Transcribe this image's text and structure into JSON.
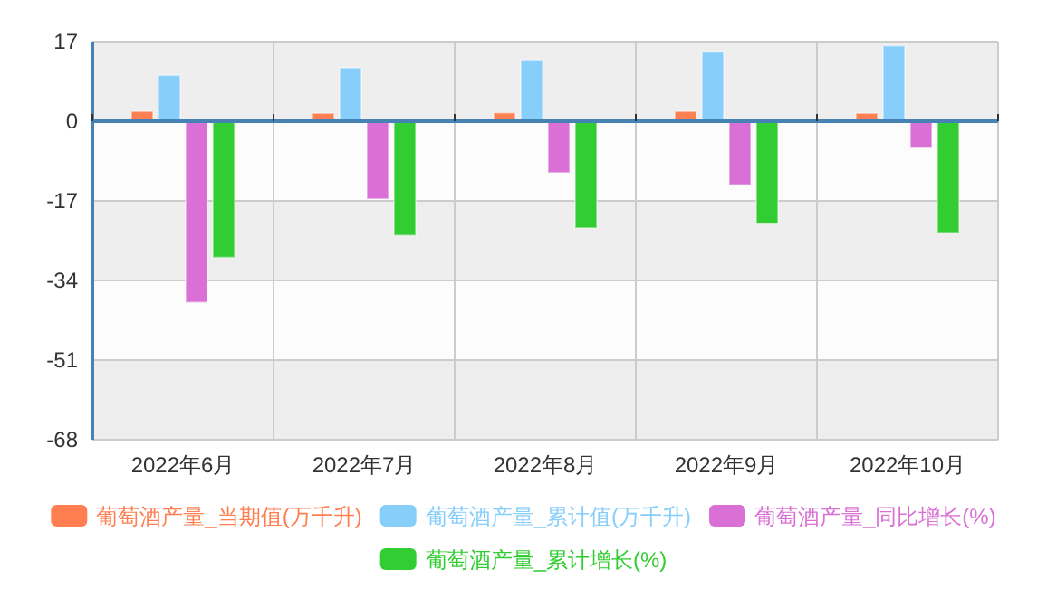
{
  "chart_data": {
    "type": "bar",
    "categories": [
      "2022年6月",
      "2022年7月",
      "2022年8月",
      "2022年9月",
      "2022年10月"
    ],
    "series": [
      {
        "name": "葡萄酒产量_当期值(万千升)",
        "color": "#ff7f50",
        "values": [
          2.1,
          1.7,
          1.8,
          2.1,
          1.7
        ]
      },
      {
        "name": "葡萄酒产量_累计值(万千升)",
        "color": "#87cefa",
        "values": [
          9.8,
          11.4,
          13.1,
          14.8,
          16.1
        ]
      },
      {
        "name": "葡萄酒产量_同比增长(%)",
        "color": "#da70d6",
        "values": [
          -38.7,
          -16.6,
          -11.0,
          -13.6,
          -5.7
        ]
      },
      {
        "name": "葡萄酒产量_累计增长(%)",
        "color": "#32cd32",
        "values": [
          -29.1,
          -24.4,
          -22.8,
          -21.9,
          -23.8
        ]
      }
    ],
    "ref_lines": [
      {
        "axis": "y",
        "value": 0,
        "color": "#4682b4"
      }
    ],
    "ylim": [
      -68,
      17
    ],
    "yticks": [
      17,
      0,
      -17,
      -34,
      -51,
      -68
    ],
    "grid": true,
    "legend": "bottom"
  }
}
